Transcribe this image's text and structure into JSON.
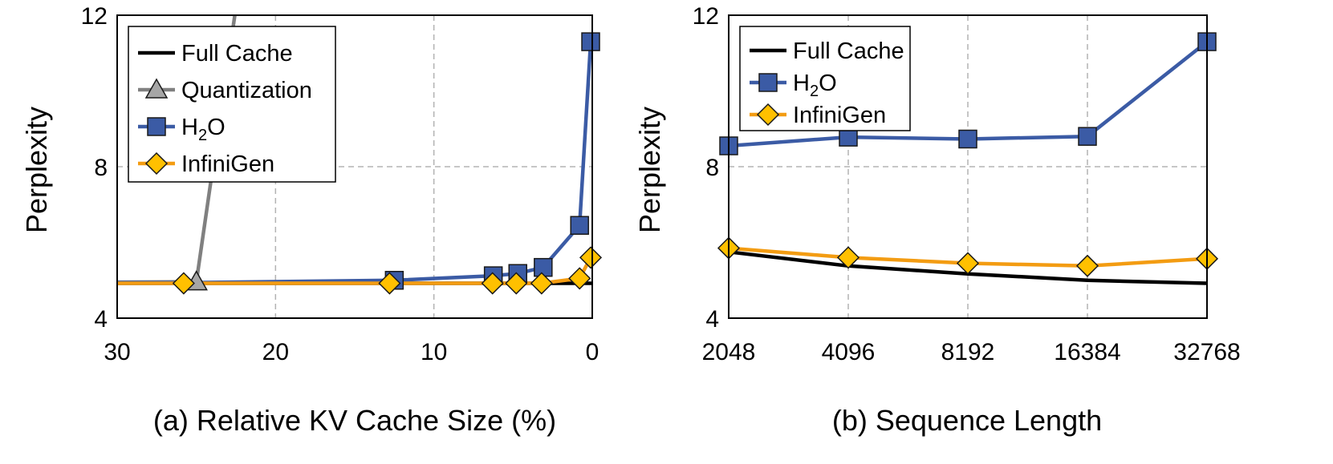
{
  "chart_data": [
    {
      "type": "line",
      "caption": "(a) Relative KV Cache Size (%)",
      "ylabel": "Perplexity",
      "xlim": [
        30,
        0
      ],
      "ylim": [
        4,
        12
      ],
      "x_ticks": [
        "30",
        "20",
        "10",
        "0"
      ],
      "y_ticks": [
        "4",
        "8",
        "12"
      ],
      "grid": true,
      "legend": "top-left",
      "series": [
        {
          "name": "Full Cache",
          "color": "#000000",
          "marker": "none",
          "x": [
            30,
            25.8,
            25,
            12.8,
            6.3,
            4.7,
            3.1,
            0.8,
            0
          ],
          "y": [
            4.92,
            4.92,
            4.92,
            4.92,
            4.92,
            4.92,
            4.92,
            4.92,
            4.92
          ]
        },
        {
          "name": "Quantization",
          "color": "#808080",
          "marker": "triangle",
          "x": [
            30,
            25,
            22.5
          ],
          "y": [
            4.95,
            4.96,
            12.2
          ],
          "marker_x": [
            25
          ],
          "marker_y": [
            4.96
          ]
        },
        {
          "name": "H2O",
          "name_base": "H",
          "name_sub": "2",
          "name_tail": "O",
          "color": "#3b5ba5",
          "marker": "square",
          "x": [
            30,
            25,
            12.5,
            6.25,
            4.7,
            3.1,
            0.8,
            0.1
          ],
          "y": [
            4.94,
            4.94,
            5.0,
            5.12,
            5.18,
            5.34,
            6.45,
            11.3
          ],
          "marker_x": [
            12.5,
            6.25,
            4.7,
            3.1,
            0.8,
            0.1
          ],
          "marker_y": [
            5.0,
            5.12,
            5.18,
            5.34,
            6.45,
            11.3
          ]
        },
        {
          "name": "InfiniGen",
          "color": "#f39c12",
          "marker": "diamond",
          "x": [
            30,
            25.8,
            12.8,
            6.3,
            4.8,
            3.2,
            0.8,
            0.1
          ],
          "y": [
            4.92,
            4.92,
            4.92,
            4.92,
            4.92,
            4.92,
            5.05,
            5.6
          ],
          "marker_x": [
            25.8,
            12.8,
            6.3,
            4.8,
            3.2,
            0.8,
            0.1
          ],
          "marker_y": [
            4.92,
            4.92,
            4.92,
            4.92,
            4.92,
            5.05,
            5.6
          ]
        }
      ]
    },
    {
      "type": "line",
      "caption": "(b) Sequence Length",
      "ylabel": "Perplexity",
      "categories": [
        "2048",
        "4096",
        "8192",
        "16384",
        "32768"
      ],
      "ylim": [
        4,
        12
      ],
      "y_ticks": [
        "4",
        "8",
        "12"
      ],
      "grid": true,
      "legend": "top-left",
      "series": [
        {
          "name": "Full Cache",
          "color": "#000000",
          "marker": "none",
          "values": [
            5.75,
            5.38,
            5.17,
            5.0,
            4.92
          ]
        },
        {
          "name": "H2O",
          "name_base": "H",
          "name_sub": "2",
          "name_tail": "O",
          "color": "#3b5ba5",
          "marker": "square",
          "values": [
            8.55,
            8.78,
            8.73,
            8.8,
            11.3
          ]
        },
        {
          "name": "InfiniGen",
          "color": "#f39c12",
          "marker": "diamond",
          "values": [
            5.85,
            5.6,
            5.45,
            5.38,
            5.57
          ]
        }
      ]
    }
  ]
}
